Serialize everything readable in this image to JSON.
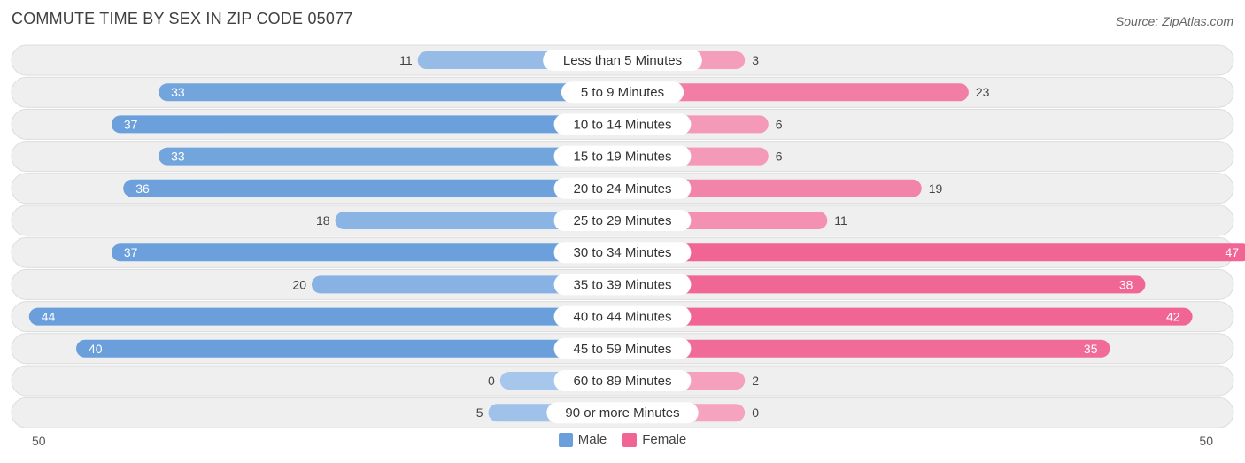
{
  "header": {
    "title": "COMMUTE TIME BY SEX IN ZIP CODE 05077",
    "source": "Source: ZipAtlas.com"
  },
  "axis": {
    "left_label": "50",
    "right_label": "50"
  },
  "legend": {
    "male_label": "Male",
    "female_label": "Female"
  },
  "colors": {
    "male_dark": "#6a9fdb",
    "male_light": "#a7c6ec",
    "female_dark": "#f06593",
    "female_light": "#f5a3bf",
    "row_bg": "#efefef",
    "row_border": "#dcdcdc"
  },
  "chart_data": {
    "type": "bar",
    "orientation": "horizontal-diverging",
    "title": "COMMUTE TIME BY SEX IN ZIP CODE 05077",
    "xlim": [
      -50,
      50
    ],
    "categories": [
      "Less than 5 Minutes",
      "5 to 9 Minutes",
      "10 to 14 Minutes",
      "15 to 19 Minutes",
      "20 to 24 Minutes",
      "25 to 29 Minutes",
      "30 to 34 Minutes",
      "35 to 39 Minutes",
      "40 to 44 Minutes",
      "45 to 59 Minutes",
      "60 to 89 Minutes",
      "90 or more Minutes"
    ],
    "series": [
      {
        "name": "Male",
        "values": [
          11,
          33,
          37,
          33,
          36,
          18,
          37,
          20,
          44,
          40,
          0,
          5
        ]
      },
      {
        "name": "Female",
        "values": [
          3,
          23,
          6,
          6,
          19,
          11,
          47,
          38,
          42,
          35,
          2,
          0
        ]
      }
    ],
    "legend_position": "bottom-center"
  }
}
